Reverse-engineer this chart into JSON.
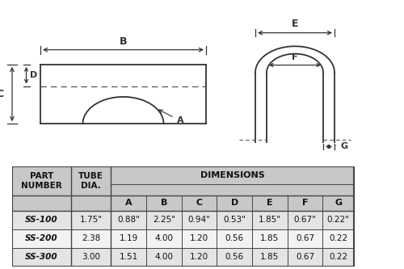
{
  "bg_color": "#ffffff",
  "table_header_bg": "#c8c8c8",
  "table_row_bg1": "#e4e4e4",
  "table_row_bg2": "#f2f2f2",
  "table_border": "#444444",
  "line_color": "#333333",
  "dashed_color": "#555555",
  "rows": [
    [
      "SS-100",
      "1.75\"",
      "0.88\"",
      "2.25\"",
      "0.94\"",
      "0.53\"",
      "1.85\"",
      "0.67\"",
      "0.22\""
    ],
    [
      "SS-200",
      "2.38",
      "1.19",
      "4.00",
      "1.20",
      "0.56",
      "1.85",
      "0.67",
      "0.22"
    ],
    [
      "SS-300",
      "3.00",
      "1.51",
      "4.00",
      "1.20",
      "0.56",
      "1.85",
      "0.67",
      "0.22"
    ]
  ]
}
